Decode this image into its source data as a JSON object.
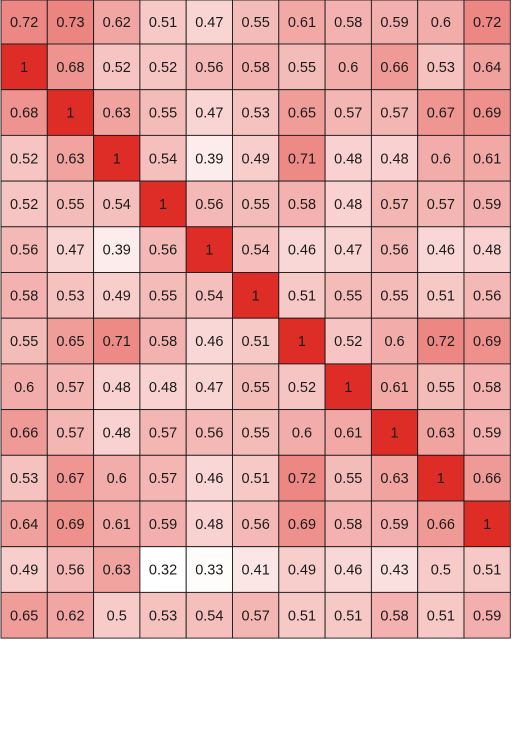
{
  "chart_data": {
    "type": "heatmap",
    "title": "",
    "xlabel": "",
    "ylabel": "",
    "row_labels": [],
    "col_labels": [],
    "color_scale": {
      "low": "#ffffff",
      "high": "#de2d26",
      "min": 0.32,
      "max": 1
    },
    "gridline_color": "#1a1a1a",
    "text_color": "#1a1a1a",
    "values": [
      [
        0.72,
        0.73,
        0.62,
        0.51,
        0.47,
        0.55,
        0.61,
        0.58,
        0.59,
        0.6,
        0.72
      ],
      [
        1,
        0.68,
        0.52,
        0.52,
        0.56,
        0.58,
        0.55,
        0.6,
        0.66,
        0.53,
        0.64
      ],
      [
        0.68,
        1,
        0.63,
        0.55,
        0.47,
        0.53,
        0.65,
        0.57,
        0.57,
        0.67,
        0.69
      ],
      [
        0.52,
        0.63,
        1,
        0.54,
        0.39,
        0.49,
        0.71,
        0.48,
        0.48,
        0.6,
        0.61
      ],
      [
        0.52,
        0.55,
        0.54,
        1,
        0.56,
        0.55,
        0.58,
        0.48,
        0.57,
        0.57,
        0.59
      ],
      [
        0.56,
        0.47,
        0.39,
        0.56,
        1,
        0.54,
        0.46,
        0.47,
        0.56,
        0.46,
        0.48
      ],
      [
        0.58,
        0.53,
        0.49,
        0.55,
        0.54,
        1,
        0.51,
        0.55,
        0.55,
        0.51,
        0.56
      ],
      [
        0.55,
        0.65,
        0.71,
        0.58,
        0.46,
        0.51,
        1,
        0.52,
        0.6,
        0.72,
        0.69
      ],
      [
        0.6,
        0.57,
        0.48,
        0.48,
        0.47,
        0.55,
        0.52,
        1,
        0.61,
        0.55,
        0.58
      ],
      [
        0.66,
        0.57,
        0.48,
        0.57,
        0.56,
        0.55,
        0.6,
        0.61,
        1,
        0.63,
        0.59
      ],
      [
        0.53,
        0.67,
        0.6,
        0.57,
        0.46,
        0.51,
        0.72,
        0.55,
        0.63,
        1,
        0.66
      ],
      [
        0.64,
        0.69,
        0.61,
        0.59,
        0.48,
        0.56,
        0.69,
        0.58,
        0.59,
        0.66,
        1
      ],
      [
        0.49,
        0.56,
        0.63,
        0.32,
        0.33,
        0.41,
        0.49,
        0.46,
        0.43,
        0.5,
        0.51
      ],
      [
        0.65,
        0.62,
        0.5,
        0.53,
        0.54,
        0.57,
        0.51,
        0.51,
        0.58,
        0.51,
        0.59
      ]
    ]
  }
}
